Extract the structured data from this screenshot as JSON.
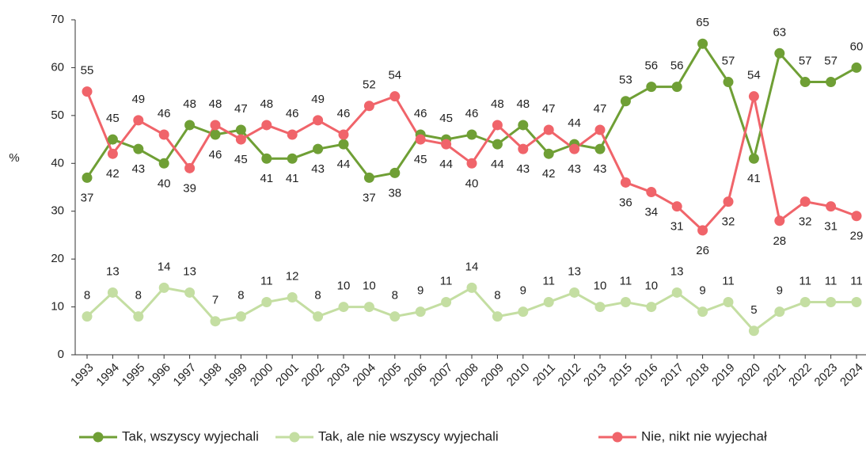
{
  "chart_data": {
    "type": "line",
    "y_label": "%",
    "categories": [
      "1993",
      "1994",
      "1995",
      "1996",
      "1997",
      "1998",
      "1999",
      "2000",
      "2001",
      "2002",
      "2003",
      "2004",
      "2005",
      "2006",
      "2007",
      "2008",
      "2009",
      "2010",
      "2011",
      "2012",
      "2013",
      "2015",
      "2016",
      "2017",
      "2018",
      "2019",
      "2020",
      "2021",
      "2022",
      "2023",
      "2024"
    ],
    "series": [
      {
        "name": "Tak, wszyscy wyjechali",
        "color": "#6f9f35",
        "values": [
          37,
          45,
          43,
          40,
          48,
          46,
          47,
          41,
          41,
          43,
          44,
          37,
          38,
          46,
          45,
          46,
          44,
          48,
          42,
          44,
          43,
          53,
          56,
          56,
          65,
          57,
          41,
          63,
          57,
          57,
          60
        ]
      },
      {
        "name": "Tak, ale nie wszyscy wyjechali",
        "color": "#c4dea2",
        "values": [
          8,
          13,
          8,
          14,
          13,
          7,
          8,
          11,
          12,
          8,
          10,
          10,
          8,
          9,
          11,
          14,
          8,
          9,
          11,
          13,
          10,
          11,
          10,
          13,
          9,
          11,
          5,
          9,
          11,
          11,
          11
        ]
      },
      {
        "name": "Nie, nikt nie wyjechał",
        "color": "#f0646a",
        "values": [
          55,
          42,
          49,
          46,
          39,
          48,
          45,
          48,
          46,
          49,
          46,
          52,
          54,
          45,
          44,
          40,
          48,
          43,
          47,
          43,
          47,
          36,
          34,
          31,
          26,
          32,
          54,
          28,
          32,
          31,
          29
        ]
      }
    ],
    "ylim": [
      0,
      70
    ],
    "yticks": [
      0,
      10,
      20,
      30,
      40,
      50,
      60,
      70
    ],
    "legend": "bottom"
  }
}
